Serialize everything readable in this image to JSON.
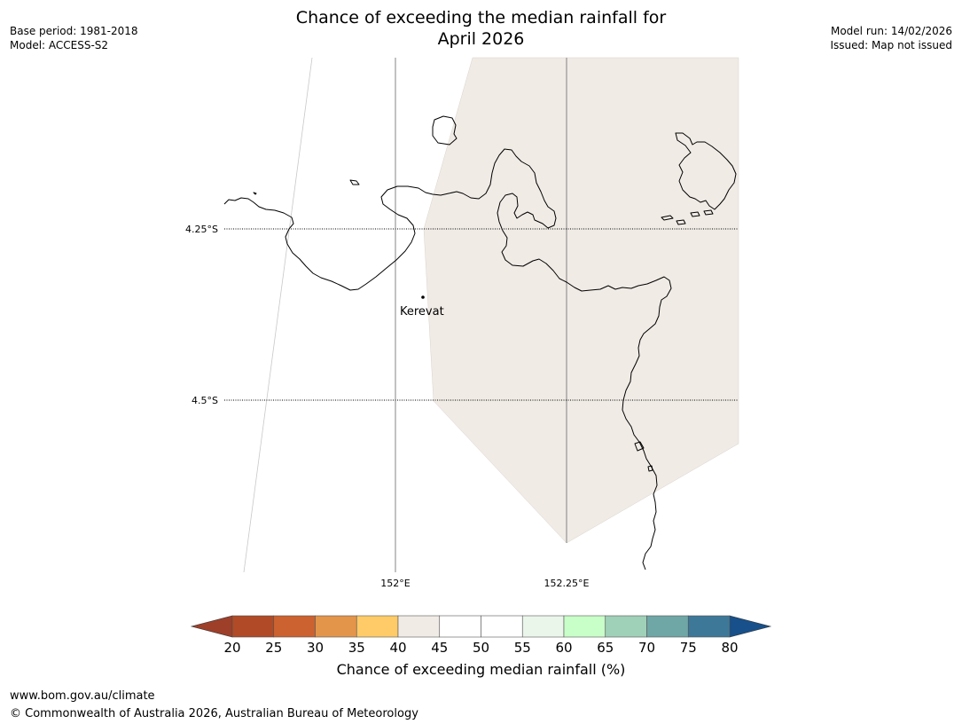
{
  "header": {
    "title_line1": "Chance of exceeding the median rainfall for",
    "title_line2": "April 2026",
    "left_line1": "Base period: 1981-2018",
    "left_line2": "Model: ACCESS-S2",
    "right_line1": "Model run: 14/02/2026",
    "right_line2": "Issued: Map not issued"
  },
  "map": {
    "place_label": "Kerevat",
    "lat_labels": [
      "4.25°S",
      "4.5°S"
    ],
    "lon_labels": [
      "152°E",
      "152.25°E"
    ],
    "shaded_category": "40-45",
    "shaded_color": "#f0ebe5"
  },
  "colorbar": {
    "title": "Chance of exceeding median rainfall (%)",
    "ticks": [
      "20",
      "25",
      "30",
      "35",
      "40",
      "45",
      "50",
      "55",
      "60",
      "65",
      "70",
      "75",
      "80"
    ],
    "colors": [
      "#b04a27",
      "#cc6230",
      "#e3954a",
      "#fecb68",
      "#f0ebe5",
      "#ffffff",
      "#ffffff",
      "#eaf6ea",
      "#c8fec8",
      "#9fd0b8",
      "#6fa6a6",
      "#3e7898"
    ],
    "low_color": "#9e3f29",
    "high_color": "#17508a"
  },
  "footer": {
    "line1": "www.bom.gov.au/climate",
    "line2": "© Commonwealth of Australia 2026, Australian Bureau of Meteorology"
  }
}
